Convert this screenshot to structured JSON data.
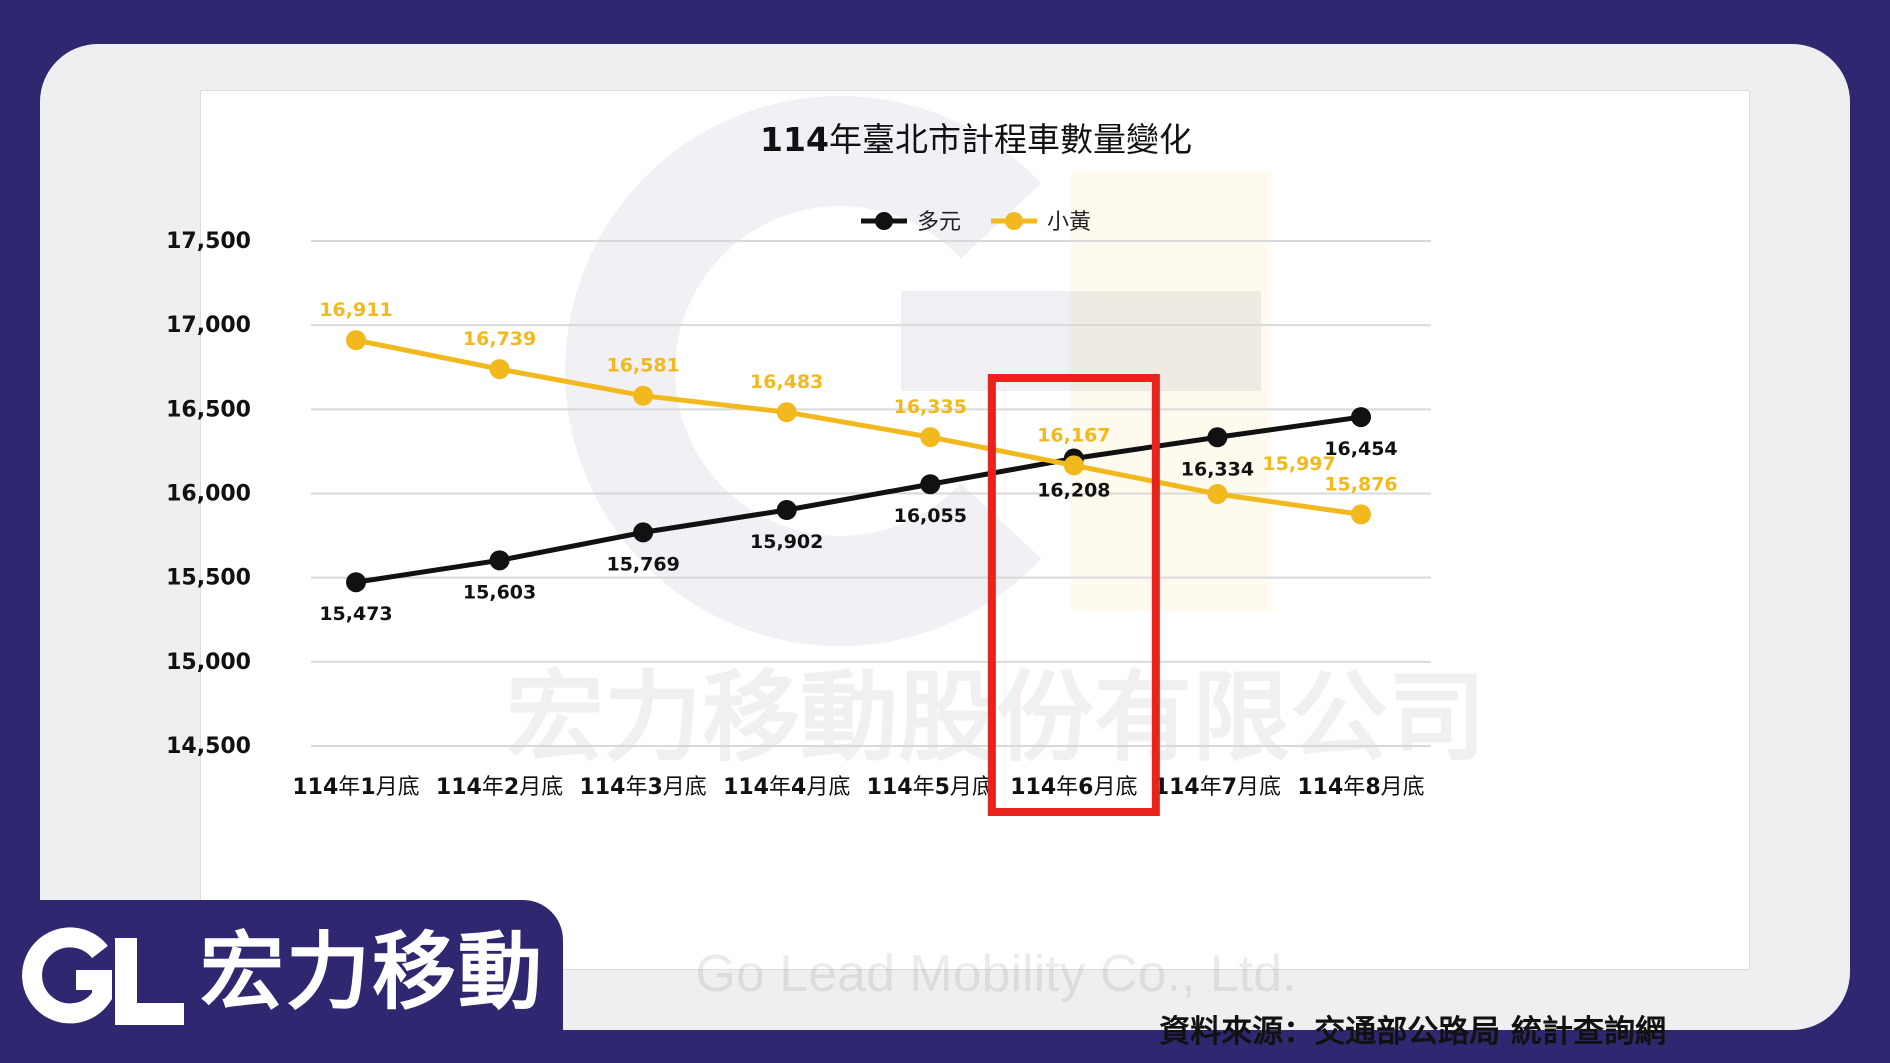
{
  "colors": {
    "frame": "#2f2870",
    "card": "#efeff1",
    "duoyuan": "#111111",
    "xiaohuang": "#f2b91e",
    "highlight": "#e8231b"
  },
  "brand": {
    "logo": "GL",
    "name": "宏力移動"
  },
  "watermark": {
    "company": "宏力移動股份有限公司",
    "english": "Go Lead Mobility Co., Ltd."
  },
  "source": "資料來源：交通部公路局 統計查詢網",
  "chart_data": {
    "type": "line",
    "title_prefix": "114",
    "title": "年臺北市計程車數量變化",
    "categories": [
      {
        "year": "114",
        "label_mid": "年",
        "month": "1",
        "label_end": "月底"
      },
      {
        "year": "114",
        "label_mid": "年",
        "month": "2",
        "label_end": "月底"
      },
      {
        "year": "114",
        "label_mid": "年",
        "month": "3",
        "label_end": "月底"
      },
      {
        "year": "114",
        "label_mid": "年",
        "month": "4",
        "label_end": "月底"
      },
      {
        "year": "114",
        "label_mid": "年",
        "month": "5",
        "label_end": "月底"
      },
      {
        "year": "114",
        "label_mid": "年",
        "month": "6",
        "label_end": "月底"
      },
      {
        "year": "114",
        "label_mid": "年",
        "month": "7",
        "label_end": "月底"
      },
      {
        "year": "114",
        "label_mid": "年",
        "month": "8",
        "label_end": "月底"
      }
    ],
    "series": [
      {
        "name": "多元",
        "color": "#111111",
        "values": [
          15473,
          15603,
          15769,
          15902,
          16055,
          16208,
          16334,
          16454
        ],
        "labels": [
          "15,473",
          "15,603",
          "15,769",
          "15,902",
          "16,055",
          "16,208",
          "16,334",
          "16,454"
        ]
      },
      {
        "name": "小黃",
        "color": "#f2b91e",
        "values": [
          16911,
          16739,
          16581,
          16483,
          16335,
          16167,
          15997,
          15876
        ],
        "labels": [
          "16,911",
          "16,739",
          "16,581",
          "16,483",
          "16,335",
          "16,167",
          "15,997",
          "15,876"
        ]
      }
    ],
    "ylim": [
      14500,
      17500
    ],
    "yticks": [
      17500,
      17000,
      16500,
      16000,
      15500,
      15000,
      14500
    ],
    "ytick_labels": [
      "17,500",
      "17,000",
      "16,500",
      "16,000",
      "15,500",
      "15,000",
      "14,500"
    ],
    "grid": true,
    "legend_position": "top-center",
    "highlight_category_index": 5
  }
}
